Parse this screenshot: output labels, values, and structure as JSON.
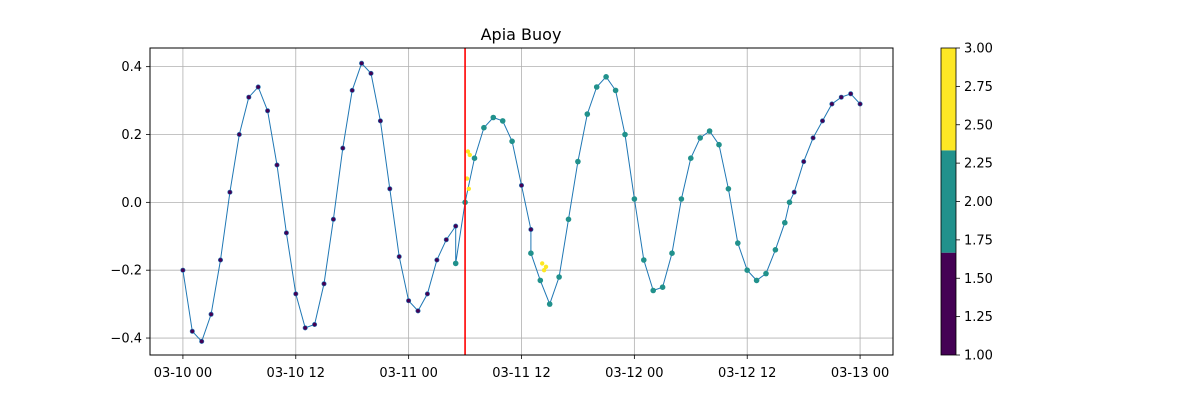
{
  "chart_data": {
    "type": "scatter",
    "title": "Apia Buoy",
    "xlabel": "",
    "ylabel": "",
    "x_ticks": [
      "03-10 00",
      "03-10 12",
      "03-11 00",
      "03-11 12",
      "03-12 00",
      "03-12 12",
      "03-13 00"
    ],
    "x_tick_hours": [
      0,
      12,
      24,
      36,
      48,
      60,
      72
    ],
    "xlim_hours": [
      -3.5,
      75.5
    ],
    "y_ticks": [
      "0.4",
      "0.2",
      "0.0",
      "−0.2",
      "−0.4"
    ],
    "y_tick_values": [
      0.4,
      0.2,
      0.0,
      -0.2,
      -0.4
    ],
    "ylim": [
      -0.45,
      0.455
    ],
    "grid": true,
    "vertical_line_hours": 30,
    "vertical_line_color": "#ff0000",
    "line_color": "#1f77b4",
    "series": [
      {
        "color_value": 1,
        "segments": [
          {
            "x": [
              0,
              1,
              2,
              3,
              4,
              5,
              6,
              7,
              8,
              9,
              10,
              11,
              12,
              13,
              14,
              15,
              16,
              17,
              18,
              19,
              20,
              21,
              22,
              23,
              24,
              25,
              26,
              27,
              28,
              29
            ],
            "y": [
              -0.2,
              -0.38,
              -0.41,
              -0.33,
              -0.17,
              0.03,
              0.2,
              0.31,
              0.34,
              0.27,
              0.11,
              -0.09,
              -0.27,
              -0.37,
              -0.36,
              -0.24,
              -0.05,
              0.16,
              0.33,
              0.41,
              0.38,
              0.24,
              0.04,
              -0.16,
              -0.29,
              -0.32,
              -0.27,
              -0.17,
              -0.11,
              -0.07
            ]
          },
          {
            "x": [
              35,
              36,
              37
            ],
            "y": [
              0.18,
              0.05,
              -0.08
            ]
          },
          {
            "x": [
              64.5,
              65,
              66,
              67,
              68,
              69,
              70,
              71,
              72
            ],
            "y": [
              0.0,
              0.03,
              0.12,
              0.19,
              0.24,
              0.29,
              0.31,
              0.32,
              0.29
            ]
          }
        ]
      },
      {
        "color_value": 2,
        "segments": [
          {
            "x": [
              29,
              30,
              31,
              32,
              33,
              34,
              35
            ],
            "y": [
              -0.18,
              0.0,
              0.13,
              0.22,
              0.25,
              0.24,
              0.18
            ]
          },
          {
            "x": [
              37,
              38,
              39,
              40,
              41,
              42,
              43,
              44,
              45,
              46,
              47,
              48,
              49,
              50,
              51,
              52,
              53,
              54,
              55,
              56,
              57,
              58,
              59,
              60,
              61,
              62,
              63,
              64,
              64.5
            ],
            "y": [
              -0.15,
              -0.23,
              -0.3,
              -0.22,
              -0.05,
              0.12,
              0.26,
              0.34,
              0.37,
              0.33,
              0.2,
              0.01,
              -0.17,
              -0.26,
              -0.25,
              -0.15,
              0.01,
              0.13,
              0.19,
              0.21,
              0.17,
              0.04,
              -0.12,
              -0.2,
              -0.23,
              -0.21,
              -0.14,
              -0.06,
              0.0
            ]
          }
        ]
      },
      {
        "color_value": 3,
        "segments": [
          {
            "x": [
              30.2,
              30.3,
              30.4,
              30.5
            ],
            "y": [
              0.07,
              0.15,
              0.04,
              0.14
            ]
          },
          {
            "x": [
              38.2,
              38.4,
              38.6
            ],
            "y": [
              -0.18,
              -0.2,
              -0.19
            ]
          }
        ]
      }
    ],
    "colorbar": {
      "ticks": [
        "3.00",
        "2.75",
        "2.50",
        "2.25",
        "2.00",
        "1.75",
        "1.50",
        "1.25",
        "1.00"
      ],
      "range": [
        1,
        3
      ],
      "bands": [
        {
          "from": 1.0,
          "to": 1.6667,
          "color": "#440154"
        },
        {
          "from": 1.6667,
          "to": 2.3333,
          "color": "#21918c"
        },
        {
          "from": 2.3333,
          "to": 3.0,
          "color": "#fde725"
        }
      ]
    }
  }
}
